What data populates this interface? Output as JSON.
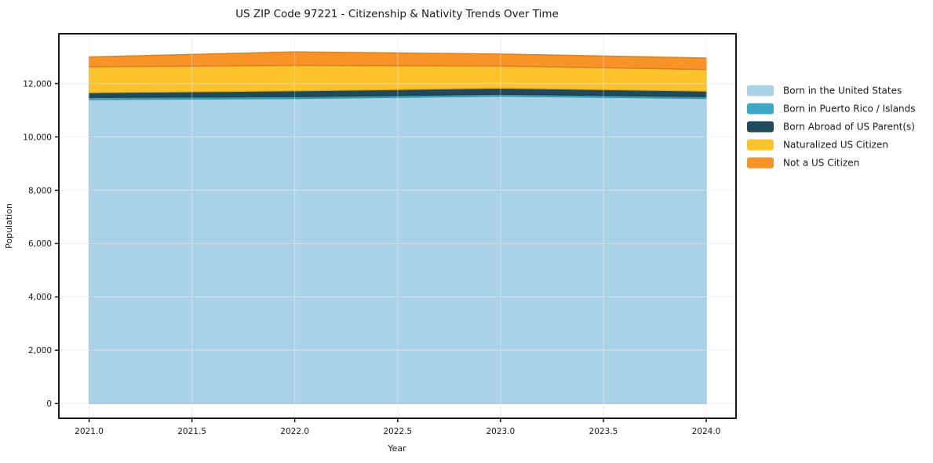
{
  "chart_data": {
    "type": "area",
    "stacked": true,
    "title": "US ZIP Code 97221 - Citizenship & Nativity Trends Over Time",
    "xlabel": "Year",
    "ylabel": "Population",
    "x": [
      2021,
      2022,
      2023,
      2024
    ],
    "series": [
      {
        "name": "Born in the United States",
        "color": "#a9d2e7",
        "values": [
          11400,
          11440,
          11530,
          11440
        ]
      },
      {
        "name": "Born in Puerto Rico / Islands",
        "color": "#3fa8c6",
        "values": [
          80,
          70,
          70,
          70
        ]
      },
      {
        "name": "Born Abroad of US Parent(s)",
        "color": "#204a5c",
        "values": [
          180,
          220,
          230,
          210
        ]
      },
      {
        "name": "Naturalized US Citizen",
        "color": "#fcc32d",
        "values": [
          970,
          950,
          830,
          810
        ]
      },
      {
        "name": "Not a US Citizen",
        "color": "#f79327",
        "values": [
          370,
          510,
          450,
          430
        ]
      }
    ],
    "totals": [
      13000,
      13190,
      13110,
      12960
    ],
    "x_ticks": [
      2021.0,
      2021.5,
      2022.0,
      2022.5,
      2023.0,
      2023.5,
      2024.0
    ],
    "x_tick_labels": [
      "2021.0",
      "2021.5",
      "2022.0",
      "2022.5",
      "2023.0",
      "2023.5",
      "2024.0"
    ],
    "y_ticks": [
      0,
      2000,
      4000,
      6000,
      8000,
      10000,
      12000
    ],
    "y_tick_labels": [
      "0",
      "2,000",
      "4,000",
      "6,000",
      "8,000",
      "10,000",
      "12,000"
    ],
    "xlim": [
      2020.853,
      2024.145
    ],
    "ylim": [
      -550,
      13870
    ],
    "grid": true,
    "grid_color": "#ececf2",
    "legend_position": "right-outside",
    "spine_color": "#000000",
    "background_color": "#ffffff"
  }
}
